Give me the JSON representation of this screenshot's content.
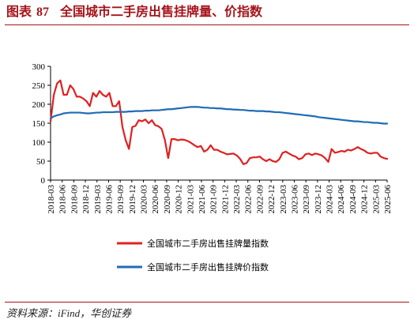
{
  "figure": {
    "label": "图表",
    "number": "87",
    "title": "全国城市二手房出售挂牌量、价指数",
    "source": "资料来源：iFind，华创证券"
  },
  "colors": {
    "title": "#a5131a",
    "volume": "#e02020",
    "price": "#1f6bb5",
    "axis": "#000000"
  },
  "chart_data": {
    "type": "line",
    "title": "全国城市二手房出售挂牌量、价指数",
    "xlabel": "",
    "ylabel": "",
    "ylim": [
      0,
      300
    ],
    "yticks": [
      0,
      50,
      100,
      150,
      200,
      250,
      300
    ],
    "grid": false,
    "legend_position": "bottom",
    "xtick_labels": [
      "2018-03",
      "2018-06",
      "2018-09",
      "2018-12",
      "2019-03",
      "2019-06",
      "2019-09",
      "2019-12",
      "2020-03",
      "2020-06",
      "2020-09",
      "2020-12",
      "2021-03",
      "2021-06",
      "2021-09",
      "2021-12",
      "2022-03",
      "2022-06",
      "2022-09",
      "2022-12",
      "2023-03",
      "2023-06",
      "2023-09",
      "2023-12",
      "2024-03",
      "2024-06",
      "2024-09",
      "2024-12",
      "2025-03",
      "2025-06"
    ],
    "series": [
      {
        "name": "全国城市二手房出售挂牌量指数",
        "color": "#e02020",
        "values": [
          155,
          225,
          255,
          263,
          225,
          225,
          250,
          240,
          220,
          220,
          215,
          208,
          195,
          230,
          220,
          235,
          225,
          220,
          230,
          195,
          195,
          208,
          140,
          105,
          82,
          140,
          143,
          158,
          155,
          160,
          150,
          158,
          145,
          142,
          135,
          105,
          58,
          108,
          108,
          105,
          107,
          106,
          103,
          98,
          92,
          87,
          90,
          75,
          80,
          92,
          80,
          80,
          75,
          72,
          68,
          69,
          70,
          65,
          56,
          42,
          45,
          58,
          60,
          60,
          62,
          55,
          50,
          55,
          50,
          48,
          55,
          72,
          75,
          70,
          65,
          62,
          55,
          58,
          68,
          70,
          66,
          70,
          68,
          65,
          58,
          48,
          82,
          72,
          74,
          77,
          75,
          80,
          78,
          82,
          87,
          82,
          78,
          72,
          70,
          72,
          72,
          62,
          58,
          56
        ]
      },
      {
        "name": "全国城市二手房出售挂牌价指数",
        "color": "#1f6bb5",
        "values": [
          163,
          168,
          171,
          173,
          176,
          177,
          178,
          178,
          178,
          178,
          177,
          176,
          176,
          177,
          178,
          178,
          179,
          179,
          179,
          179,
          180,
          180,
          180,
          180,
          181,
          181,
          182,
          182,
          182,
          183,
          183,
          184,
          184,
          184,
          185,
          186,
          187,
          187,
          188,
          189,
          190,
          191,
          192,
          193,
          193,
          193,
          192,
          191,
          191,
          190,
          190,
          189,
          189,
          188,
          187,
          187,
          186,
          186,
          185,
          185,
          184,
          183,
          183,
          182,
          182,
          182,
          181,
          181,
          180,
          179,
          179,
          178,
          177,
          176,
          175,
          174,
          173,
          172,
          171,
          170,
          169,
          168,
          166,
          165,
          164,
          163,
          162,
          161,
          160,
          159,
          158,
          157,
          156,
          155,
          155,
          154,
          153,
          153,
          152,
          151,
          151,
          150,
          149,
          149
        ]
      }
    ]
  }
}
